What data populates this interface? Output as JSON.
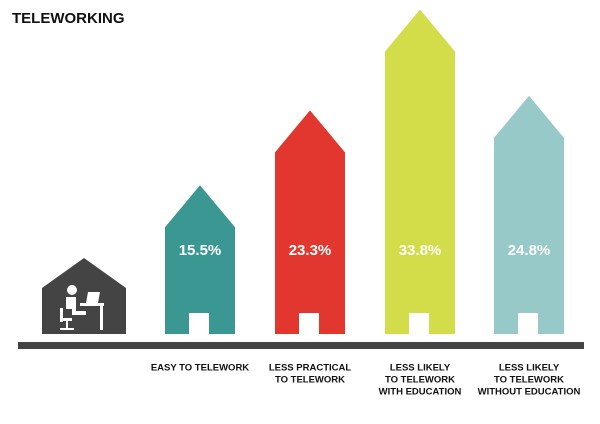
{
  "chart_data": {
    "type": "house-bar",
    "title": "TELEWORKING",
    "categories": [
      [
        "EASY TO TELEWORK"
      ],
      [
        "LESS PRACTICAL",
        "TO TELEWORK"
      ],
      [
        "LESS LIKELY",
        "TO TELEWORK",
        "WITH EDUCATION"
      ],
      [
        "LESS LIKELY",
        "TO TELEWORK",
        "WITHOUT EDUCATION"
      ]
    ],
    "values": [
      15.5,
      23.3,
      33.8,
      24.8
    ],
    "value_labels": [
      "15.5%",
      "23.3%",
      "33.8%",
      "24.8%"
    ],
    "colors": [
      "#3b9792",
      "#e2372f",
      "#d3dd4a",
      "#96c9c8"
    ]
  }
}
